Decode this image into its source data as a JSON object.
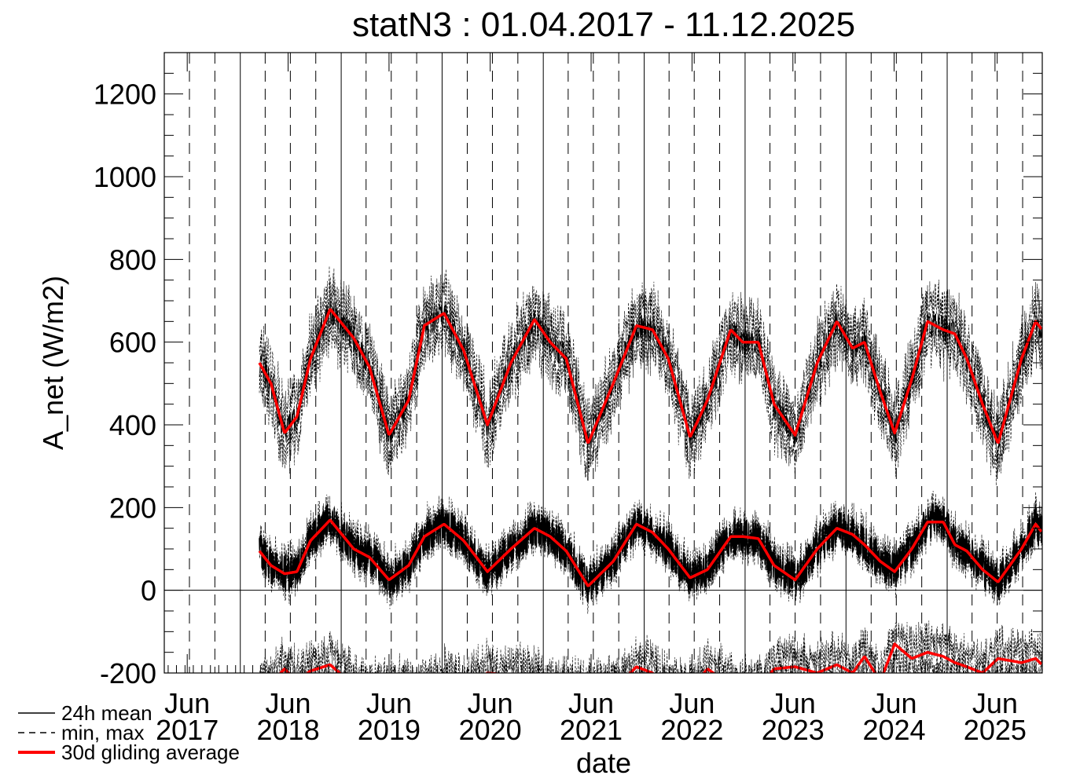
{
  "chart_data": {
    "type": "line",
    "title": "statN3 : 01.04.2017 - 11.12.2025",
    "xlabel": "date",
    "ylabel": "A_net (W/m2)",
    "xlim": [
      "2017-04-01",
      "2025-12-11"
    ],
    "ylim": [
      -200,
      1300
    ],
    "yticks": [
      -200,
      0,
      200,
      400,
      600,
      800,
      1000,
      1200
    ],
    "yticks_labels": [
      "-200",
      "0",
      "200",
      "400",
      "600",
      "800",
      "1000",
      "1200"
    ],
    "xtick_labels": [
      {
        "month": "Jun",
        "year": "2017"
      },
      {
        "month": "Jun",
        "year": "2018"
      },
      {
        "month": "Jun",
        "year": "2019"
      },
      {
        "month": "Jun",
        "year": "2020"
      },
      {
        "month": "Jun",
        "year": "2021"
      },
      {
        "month": "Jun",
        "year": "2022"
      },
      {
        "month": "Jun",
        "year": "2023"
      },
      {
        "month": "Jun",
        "year": "2024"
      },
      {
        "month": "Jun",
        "year": "2025"
      }
    ],
    "grid": "vertical lines: solid at year start, dashed at quarters; horizontal line at 0",
    "legend": {
      "placement": "bottom-left",
      "entries": [
        {
          "label": "24h mean",
          "style": "solid",
          "color": "#000000"
        },
        {
          "label": "min, max",
          "style": "dashed",
          "color": "#000000"
        },
        {
          "label": "30d gliding average",
          "style": "solid-thick",
          "color": "#ff0000"
        }
      ]
    },
    "dates": [
      "2018-03-11",
      "2018-04-22",
      "2018-06-10",
      "2018-07-25",
      "2018-09-12",
      "2018-11-22",
      "2019-02-15",
      "2019-04-13",
      "2019-06-23",
      "2019-09-02",
      "2019-10-29",
      "2020-01-08",
      "2020-03-19",
      "2020-06-13",
      "2020-09-06",
      "2020-11-30",
      "2021-01-26",
      "2021-03-25",
      "2021-06-12",
      "2021-09-11",
      "2021-12-04",
      "2022-01-31",
      "2022-03-29",
      "2022-06-16",
      "2022-08-18",
      "2022-11-10",
      "2022-12-23",
      "2023-02-18",
      "2023-04-16",
      "2023-07-01",
      "2023-09-19",
      "2023-11-29",
      "2024-01-25",
      "2024-03-08",
      "2024-05-04",
      "2024-06-25",
      "2024-08-26",
      "2024-10-22",
      "2024-12-18",
      "2025-01-29",
      "2025-03-13",
      "2025-05-09",
      "2025-07-04",
      "2025-09-27",
      "2025-11-17",
      "2025-12-10"
    ],
    "series": [
      {
        "id": "upper_30d",
        "color": "#ff0000",
        "values": [
          550,
          500,
          380,
          420,
          560,
          680,
          610,
          540,
          375,
          460,
          640,
          670,
          580,
          400,
          550,
          655,
          600,
          560,
          355,
          500,
          640,
          630,
          560,
          370,
          460,
          630,
          600,
          600,
          450,
          375,
          550,
          650,
          585,
          600,
          480,
          380,
          510,
          650,
          630,
          620,
          560,
          450,
          355,
          560,
          650,
          630
        ]
      },
      {
        "id": "net_30d",
        "color": "#ff0000",
        "values": [
          95,
          60,
          40,
          45,
          120,
          170,
          100,
          80,
          25,
          60,
          130,
          160,
          120,
          45,
          100,
          150,
          130,
          95,
          10,
          70,
          160,
          140,
          100,
          30,
          50,
          130,
          130,
          125,
          60,
          25,
          100,
          150,
          135,
          110,
          70,
          45,
          100,
          165,
          165,
          110,
          95,
          50,
          20,
          100,
          160,
          140
        ]
      },
      {
        "id": "lower_30d",
        "color": "#ff0000",
        "values": [
          -230,
          -225,
          -190,
          -220,
          -195,
          -180,
          -230,
          -240,
          -240,
          -240,
          -240,
          -210,
          -240,
          -200,
          -205,
          -210,
          -240,
          -240,
          -240,
          -240,
          -185,
          -200,
          -240,
          -240,
          -190,
          -230,
          -240,
          -240,
          -190,
          -185,
          -200,
          -180,
          -200,
          -160,
          -220,
          -130,
          -165,
          -150,
          -160,
          -175,
          -185,
          -200,
          -165,
          -175,
          -165,
          -180
        ]
      }
    ]
  }
}
